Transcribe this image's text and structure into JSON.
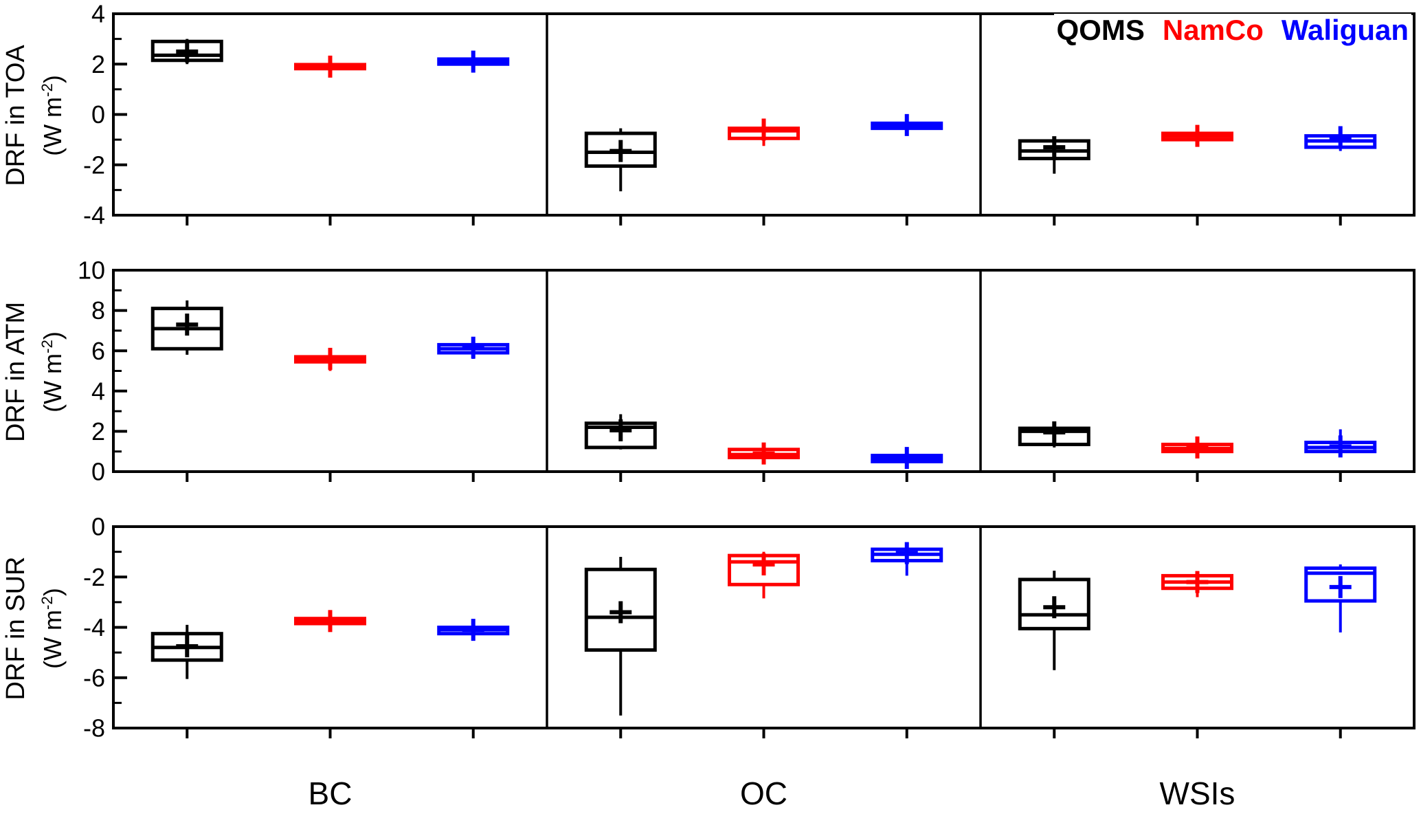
{
  "chart_data": {
    "type": "boxplot",
    "title": "",
    "categories": [
      "BC",
      "OC",
      "WSIs"
    ],
    "sites": [
      "QOMS",
      "NamCo",
      "Waliguan"
    ],
    "site_colors": [
      "#000000",
      "#ff0000",
      "#0000ff"
    ],
    "layout": {
      "grid": false,
      "legend_position": "top-right",
      "panels_stacked": 3,
      "groups_per_panel": 3,
      "boxes_per_group": 3
    },
    "panels": [
      {
        "id": "toa",
        "ylabel": "DRF in TOA",
        "unit_prefix": "(W m",
        "unit_sup": "-2",
        "unit_suffix": ")",
        "ylim": [
          -4,
          4
        ],
        "yticks": [
          -4,
          -2,
          0,
          2,
          4
        ],
        "groups": [
          {
            "category": "BC",
            "boxes": [
              {
                "site": "QOMS",
                "whisker_low": 2.0,
                "q1": 2.15,
                "median": 2.35,
                "q3": 2.9,
                "whisker_high": 3.0,
                "mean": 2.5
              },
              {
                "site": "NamCo",
                "whisker_low": 1.55,
                "q1": 1.82,
                "median": 1.9,
                "q3": 1.98,
                "whisker_high": 2.15,
                "mean": 1.9
              },
              {
                "site": "Waliguan",
                "whisker_low": 1.8,
                "q1": 2.0,
                "median": 2.1,
                "q3": 2.2,
                "whisker_high": 2.35,
                "mean": 2.1
              }
            ]
          },
          {
            "category": "OC",
            "boxes": [
              {
                "site": "QOMS",
                "whisker_low": -3.05,
                "q1": -2.05,
                "median": -1.5,
                "q3": -0.75,
                "whisker_high": -0.55,
                "mean": -1.45
              },
              {
                "site": "NamCo",
                "whisker_low": -1.25,
                "q1": -0.95,
                "median": -0.65,
                "q3": -0.55,
                "whisker_high": -0.45,
                "mean": -0.6
              },
              {
                "site": "Waliguan",
                "whisker_low": -0.8,
                "q1": -0.55,
                "median": -0.45,
                "q3": -0.35,
                "whisker_high": -0.2,
                "mean": -0.42
              }
            ]
          },
          {
            "category": "WSIs",
            "boxes": [
              {
                "site": "QOMS",
                "whisker_low": -2.35,
                "q1": -1.75,
                "median": -1.45,
                "q3": -1.05,
                "whisker_high": -0.95,
                "mean": -1.3
              },
              {
                "site": "NamCo",
                "whisker_low": -1.15,
                "q1": -1.0,
                "median": -0.87,
                "q3": -0.75,
                "whisker_high": -0.65,
                "mean": -0.85
              },
              {
                "site": "Waliguan",
                "whisker_low": -1.45,
                "q1": -1.3,
                "median": -1.05,
                "q3": -0.85,
                "whisker_high": -0.75,
                "mean": -0.9
              }
            ]
          }
        ]
      },
      {
        "id": "atm",
        "ylabel": "DRF in ATM",
        "unit_prefix": "(W m",
        "unit_sup": "-2",
        "unit_suffix": ")",
        "ylim": [
          0,
          10
        ],
        "yticks": [
          0,
          2,
          4,
          6,
          8,
          10
        ],
        "groups": [
          {
            "category": "BC",
            "boxes": [
              {
                "site": "QOMS",
                "whisker_low": 5.8,
                "q1": 6.1,
                "median": 7.1,
                "q3": 8.1,
                "whisker_high": 8.5,
                "mean": 7.3
              },
              {
                "site": "NamCo",
                "whisker_low": 5.0,
                "q1": 5.45,
                "median": 5.55,
                "q3": 5.7,
                "whisker_high": 6.0,
                "mean": 5.6
              },
              {
                "site": "Waliguan",
                "whisker_low": 5.6,
                "q1": 5.9,
                "median": 6.1,
                "q3": 6.3,
                "whisker_high": 6.5,
                "mean": 6.15
              }
            ]
          },
          {
            "category": "OC",
            "boxes": [
              {
                "site": "QOMS",
                "whisker_low": 1.1,
                "q1": 1.2,
                "median": 2.2,
                "q3": 2.4,
                "whisker_high": 2.85,
                "mean": 2.05
              },
              {
                "site": "NamCo",
                "whisker_low": 0.5,
                "q1": 0.7,
                "median": 0.85,
                "q3": 1.1,
                "whisker_high": 1.4,
                "mean": 0.9
              },
              {
                "site": "Waliguan",
                "whisker_low": 0.4,
                "q1": 0.5,
                "median": 0.65,
                "q3": 0.8,
                "whisker_high": 1.2,
                "mean": 0.68
              }
            ]
          },
          {
            "category": "WSIs",
            "boxes": [
              {
                "site": "QOMS",
                "whisker_low": 1.2,
                "q1": 1.35,
                "median": 2.0,
                "q3": 2.15,
                "whisker_high": 2.4,
                "mean": 1.95
              },
              {
                "site": "NamCo",
                "whisker_low": 0.85,
                "q1": 1.0,
                "median": 1.15,
                "q3": 1.35,
                "whisker_high": 1.55,
                "mean": 1.2
              },
              {
                "site": "Waliguan",
                "whisker_low": 0.9,
                "q1": 1.0,
                "median": 1.2,
                "q3": 1.45,
                "whisker_high": 2.1,
                "mean": 1.25
              }
            ]
          }
        ]
      },
      {
        "id": "sur",
        "ylabel": "DRF in SUR",
        "unit_prefix": "(W m",
        "unit_sup": "-2",
        "unit_suffix": ")",
        "ylim": [
          -8,
          0
        ],
        "yticks": [
          -8,
          -6,
          -4,
          -2,
          0
        ],
        "groups": [
          {
            "category": "BC",
            "boxes": [
              {
                "site": "QOMS",
                "whisker_low": -6.05,
                "q1": -5.3,
                "median": -4.8,
                "q3": -4.25,
                "whisker_high": -3.9,
                "mean": -4.75
              },
              {
                "site": "NamCo",
                "whisker_low": -4.15,
                "q1": -3.85,
                "median": -3.75,
                "q3": -3.65,
                "whisker_high": -3.4,
                "mean": -3.75
              },
              {
                "site": "Waliguan",
                "whisker_low": -4.45,
                "q1": -4.25,
                "median": -4.1,
                "q3": -4.0,
                "whisker_high": -3.85,
                "mean": -4.1
              }
            ]
          },
          {
            "category": "OC",
            "boxes": [
              {
                "site": "QOMS",
                "whisker_low": -7.5,
                "q1": -4.9,
                "median": -3.6,
                "q3": -1.7,
                "whisker_high": -1.2,
                "mean": -3.4
              },
              {
                "site": "NamCo",
                "whisker_low": -2.85,
                "q1": -2.3,
                "median": -1.4,
                "q3": -1.15,
                "whisker_high": -1.0,
                "mean": -1.5
              },
              {
                "site": "Waliguan",
                "whisker_low": -1.95,
                "q1": -1.35,
                "median": -1.1,
                "q3": -0.9,
                "whisker_high": -0.75,
                "mean": -1.05
              }
            ]
          },
          {
            "category": "WSIs",
            "boxes": [
              {
                "site": "QOMS",
                "whisker_low": -5.7,
                "q1": -4.05,
                "median": -3.5,
                "q3": -2.1,
                "whisker_high": -1.75,
                "mean": -3.2
              },
              {
                "site": "NamCo",
                "whisker_low": -2.8,
                "q1": -2.45,
                "median": -2.2,
                "q3": -1.95,
                "whisker_high": -1.8,
                "mean": -2.2
              },
              {
                "site": "Waliguan",
                "whisker_low": -4.2,
                "q1": -2.95,
                "median": -1.85,
                "q3": -1.65,
                "whisker_high": -1.5,
                "mean": -2.4
              }
            ]
          }
        ]
      }
    ]
  }
}
